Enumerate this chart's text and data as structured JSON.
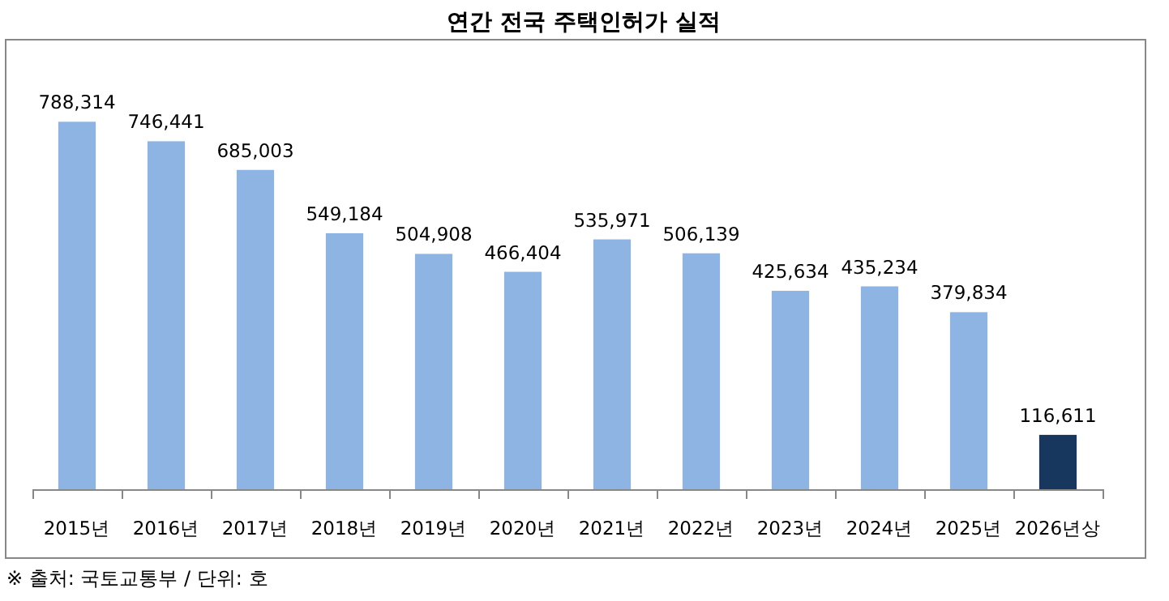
{
  "chart_data": {
    "type": "bar",
    "title": "연간 전국 주택인허가 실적",
    "categories": [
      "2015년",
      "2016년",
      "2017년",
      "2018년",
      "2019년",
      "2020년",
      "2021년",
      "2022년",
      "2023년",
      "2024년",
      "2025년",
      "2026년상"
    ],
    "values": [
      788314,
      746441,
      685003,
      549184,
      504908,
      466404,
      535971,
      506139,
      425634,
      435234,
      379834,
      116611
    ],
    "colors": [
      "#8db4e2",
      "#8db4e2",
      "#8db4e2",
      "#8db4e2",
      "#8db4e2",
      "#8db4e2",
      "#8db4e2",
      "#8db4e2",
      "#8db4e2",
      "#8db4e2",
      "#8db4e2",
      "#17375e"
    ],
    "value_labels": [
      "788,314",
      "746,441",
      "685,003",
      "549,184",
      "504,908",
      "466,404",
      "535,971",
      "506,139",
      "425,634",
      "435,234",
      "379,834",
      "116,611"
    ],
    "annotations": [
      "※ 출처: 국토교통부 / 단위: 호"
    ]
  }
}
